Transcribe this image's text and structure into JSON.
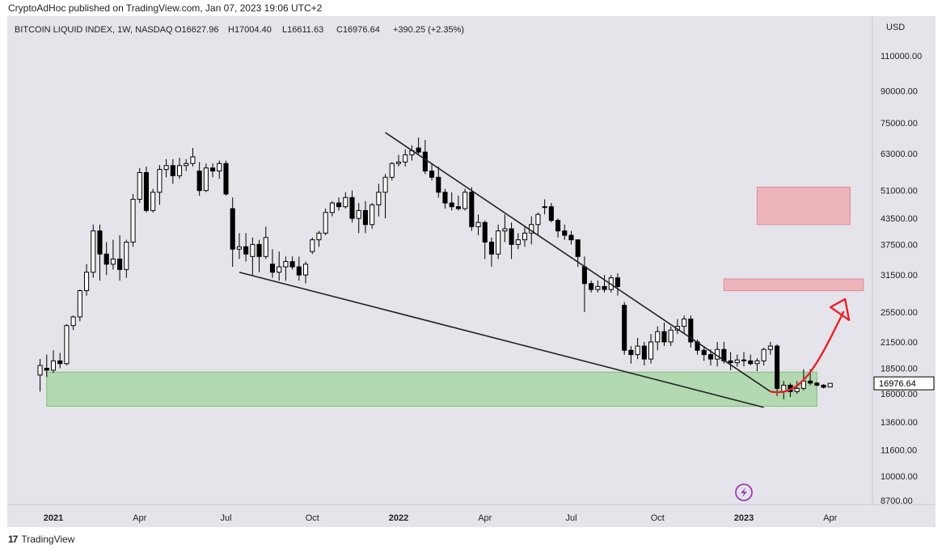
{
  "header": {
    "published_line": "CryptoAdHoc published on TradingView.com, Jan 07, 2023 19:06 UTC+2"
  },
  "footer": {
    "brand_mark": "17",
    "brand_name": "TradingView"
  },
  "legend": {
    "symbol": "BITCOIN LIQUID INDEX, 1W, NASDAQ",
    "open": "O16627.96",
    "high": "H17004.40",
    "low": "L16611.63",
    "close": "C16976.64",
    "change": "+390.25 (+2.35%)"
  },
  "icons": {
    "replay": "lightning-icon"
  },
  "colors": {
    "background": "#e4e4ea",
    "candle_up": "#ffffff",
    "candle_down": "#000000",
    "support_zone": "#a9d7a6",
    "target_zone": "#f0a8b0",
    "arrow": "#e8222a",
    "trendline": "#222222",
    "replay_icon": "#9b3fb5"
  },
  "chart_data": {
    "type": "candlestick",
    "title": "BITCOIN LIQUID INDEX, 1W, NASDAQ",
    "currency_label": "USD",
    "scale": "log",
    "y_ticks": [
      110000,
      90000,
      75000,
      63000,
      51000,
      43500,
      37500,
      31500,
      25500,
      21500,
      18500,
      16000,
      13600,
      11600,
      10000,
      8700
    ],
    "y_tick_labels": [
      "110000.00",
      "90000.00",
      "75000.00",
      "63000.00",
      "51000.00",
      "43500.00",
      "37500.00",
      "31500.00",
      "25500.00",
      "21500.00",
      "18500.00",
      "16000.00",
      "13600.00",
      "11600.00",
      "10000.00",
      "8700.00"
    ],
    "x_ticks": [
      {
        "label": "2021",
        "week": 0,
        "bold": true
      },
      {
        "label": "Apr",
        "week": 13
      },
      {
        "label": "Jul",
        "week": 26
      },
      {
        "label": "Oct",
        "week": 39
      },
      {
        "label": "2022",
        "week": 52,
        "bold": true
      },
      {
        "label": "Apr",
        "week": 65
      },
      {
        "label": "Jul",
        "week": 78
      },
      {
        "label": "Oct",
        "week": 91
      },
      {
        "label": "2023",
        "week": 104,
        "bold": true
      },
      {
        "label": "Apr",
        "week": 117
      }
    ],
    "last_price": "16976.64",
    "candles": [
      [
        17800,
        19500,
        16200,
        18800
      ],
      [
        18500,
        20000,
        17600,
        18300
      ],
      [
        18300,
        20500,
        18000,
        19300
      ],
      [
        19300,
        20200,
        18500,
        19000
      ],
      [
        19000,
        23800,
        18800,
        23600
      ],
      [
        23600,
        25000,
        23000,
        24800
      ],
      [
        24800,
        29000,
        24200,
        28800
      ],
      [
        28800,
        33500,
        28000,
        32000
      ],
      [
        32000,
        42000,
        31000,
        40500
      ],
      [
        40500,
        42000,
        30500,
        35500
      ],
      [
        35500,
        38000,
        31500,
        33500
      ],
      [
        33500,
        38500,
        32500,
        34500
      ],
      [
        34500,
        39500,
        30500,
        32500
      ],
      [
        32500,
        38500,
        31000,
        38000
      ],
      [
        38000,
        50000,
        37000,
        48500
      ],
      [
        48500,
        58000,
        47500,
        56500
      ],
      [
        56500,
        58500,
        45000,
        45500
      ],
      [
        45500,
        51500,
        45000,
        50500
      ],
      [
        50500,
        59000,
        47000,
        57500
      ],
      [
        57500,
        61000,
        55000,
        58800
      ],
      [
        58800,
        61000,
        53000,
        55500
      ],
      [
        55500,
        61500,
        54500,
        58800
      ],
      [
        58800,
        61000,
        57000,
        59500
      ],
      [
        59500,
        65000,
        58500,
        61800
      ],
      [
        57000,
        60000,
        49500,
        51000
      ],
      [
        51000,
        59500,
        50500,
        58000
      ],
      [
        58000,
        59500,
        55000,
        57000
      ],
      [
        57000,
        60500,
        54500,
        59500
      ],
      [
        59500,
        60500,
        49500,
        50000
      ],
      [
        46000,
        49000,
        33000,
        36500
      ],
      [
        36500,
        40000,
        34500,
        37000
      ],
      [
        37000,
        40000,
        34000,
        35500
      ],
      [
        35000,
        39000,
        31500,
        37500
      ],
      [
        37500,
        38500,
        32000,
        35000
      ],
      [
        35000,
        41500,
        34500,
        39000
      ],
      [
        33500,
        36500,
        31000,
        32000
      ],
      [
        32000,
        36000,
        30500,
        33000
      ],
      [
        33000,
        35000,
        30500,
        34000
      ],
      [
        34000,
        35000,
        32500,
        33000
      ],
      [
        33000,
        35000,
        30500,
        31500
      ],
      [
        31500,
        34000,
        30000,
        33500
      ],
      [
        36000,
        39000,
        35500,
        38500
      ],
      [
        38500,
        40500,
        37000,
        40000
      ],
      [
        40000,
        46000,
        39500,
        45000
      ],
      [
        45000,
        48000,
        44000,
        47500
      ],
      [
        47500,
        49000,
        45500,
        46500
      ],
      [
        46500,
        50500,
        46000,
        49000
      ],
      [
        49000,
        51000,
        42500,
        43500
      ],
      [
        43500,
        47500,
        40000,
        45500
      ],
      [
        45500,
        48000,
        40000,
        42000
      ],
      [
        42000,
        47500,
        41000,
        47000
      ],
      [
        47000,
        53000,
        44000,
        50500
      ],
      [
        50500,
        56000,
        43500,
        55000
      ],
      [
        55000,
        60000,
        54000,
        59500
      ],
      [
        59500,
        62500,
        58500,
        60000
      ],
      [
        60000,
        64500,
        58500,
        62500
      ],
      [
        62500,
        66000,
        60500,
        64000
      ],
      [
        65000,
        69000,
        62500,
        63500
      ],
      [
        63500,
        68000,
        56000,
        57000
      ],
      [
        57000,
        59500,
        54000,
        55000
      ],
      [
        55000,
        58500,
        49000,
        50500
      ],
      [
        50500,
        51500,
        46000,
        47500
      ],
      [
        47500,
        50500,
        45500,
        46500
      ],
      [
        46500,
        49500,
        45500,
        46000
      ],
      [
        46000,
        51500,
        45500,
        50500
      ],
      [
        50500,
        52000,
        40500,
        41500
      ],
      [
        41500,
        44500,
        39500,
        42500
      ],
      [
        42500,
        43000,
        34500,
        38000
      ],
      [
        38000,
        39000,
        33000,
        35500
      ],
      [
        35500,
        42000,
        34500,
        40500
      ],
      [
        40500,
        44500,
        38000,
        41000
      ],
      [
        41000,
        42500,
        34500,
        37500
      ],
      [
        37500,
        40000,
        36500,
        38500
      ],
      [
        38500,
        41500,
        37000,
        40000
      ],
      [
        40000,
        44000,
        37500,
        42000
      ],
      [
        42000,
        45000,
        39500,
        44500
      ],
      [
        46500,
        48500,
        44500,
        46500
      ],
      [
        46500,
        47500,
        42500,
        43000
      ],
      [
        43000,
        43500,
        39000,
        40500
      ],
      [
        40500,
        42000,
        38500,
        39500
      ],
      [
        39500,
        40500,
        37500,
        38500
      ],
      [
        38500,
        38500,
        33000,
        35000
      ],
      [
        33000,
        35000,
        25500,
        30000
      ],
      [
        30000,
        30500,
        28500,
        29000
      ],
      [
        29000,
        30500,
        28500,
        29500
      ],
      [
        29500,
        31500,
        28500,
        29000
      ],
      [
        29000,
        31500,
        28500,
        31000
      ],
      [
        31000,
        31800,
        28000,
        29500
      ],
      [
        26500,
        27000,
        20000,
        20500
      ],
      [
        20500,
        21000,
        19000,
        20000
      ],
      [
        20000,
        22000,
        19500,
        21000
      ],
      [
        21000,
        21500,
        18800,
        19500
      ],
      [
        19500,
        22500,
        19000,
        21500
      ],
      [
        21500,
        23500,
        20500,
        22800
      ],
      [
        22800,
        24000,
        21000,
        21500
      ],
      [
        21500,
        23500,
        21000,
        23000
      ],
      [
        23000,
        24500,
        22500,
        23500
      ],
      [
        23500,
        25000,
        22500,
        24500
      ],
      [
        24500,
        25000,
        20800,
        21500
      ],
      [
        21500,
        21800,
        20000,
        20500
      ],
      [
        20500,
        21000,
        19300,
        20000
      ],
      [
        20000,
        20600,
        18800,
        19500
      ]
    ],
    "candles_note": "",
    "candles_tail": [
      [
        19500,
        21500,
        18700,
        20600
      ],
      [
        20600,
        21500,
        19000,
        19300
      ],
      [
        19300,
        20300,
        18300,
        19100
      ],
      [
        19100,
        20000,
        18700,
        19400
      ],
      [
        19400,
        20300,
        18700,
        19300
      ],
      [
        19300,
        20000,
        18800,
        19000
      ],
      [
        19000,
        19600,
        18200,
        19300
      ],
      [
        19300,
        20800,
        18800,
        20600
      ],
      [
        20600,
        21500,
        20000,
        21000
      ],
      [
        21000,
        21200,
        15800,
        16500
      ],
      [
        16200,
        17200,
        15500,
        16800
      ],
      [
        16800,
        17000,
        15700,
        16200
      ],
      [
        16200,
        17200,
        16000,
        16500
      ],
      [
        16500,
        18400,
        16300,
        17200
      ],
      [
        17200,
        18400,
        16800,
        17000
      ],
      [
        17000,
        17100,
        16700,
        16800
      ],
      [
        16800,
        16900,
        16500,
        16600
      ],
      [
        16627.96,
        17004.4,
        16611.63,
        16976.64
      ]
    ],
    "annotations": {
      "support_zone": {
        "from_week": -1,
        "to_week": 115,
        "y_low": 14900,
        "y_high": 18100
      },
      "target_zone_upper": {
        "from_week": 106,
        "to_week": 120,
        "y_low": 42000,
        "y_high": 52000
      },
      "target_zone_lower": {
        "from_week": 101,
        "to_week": 122,
        "y_low": 28800,
        "y_high": 30800
      },
      "lower_trendline": {
        "from": [
          28,
          32000
        ],
        "to": [
          107,
          14800
        ]
      },
      "upper_trendline": {
        "from": [
          50,
          71000
        ],
        "to": [
          108,
          16200
        ]
      },
      "projection_arrow": {
        "from": [
          108,
          16200
        ],
        "to": [
          119,
          25500
        ]
      }
    }
  }
}
